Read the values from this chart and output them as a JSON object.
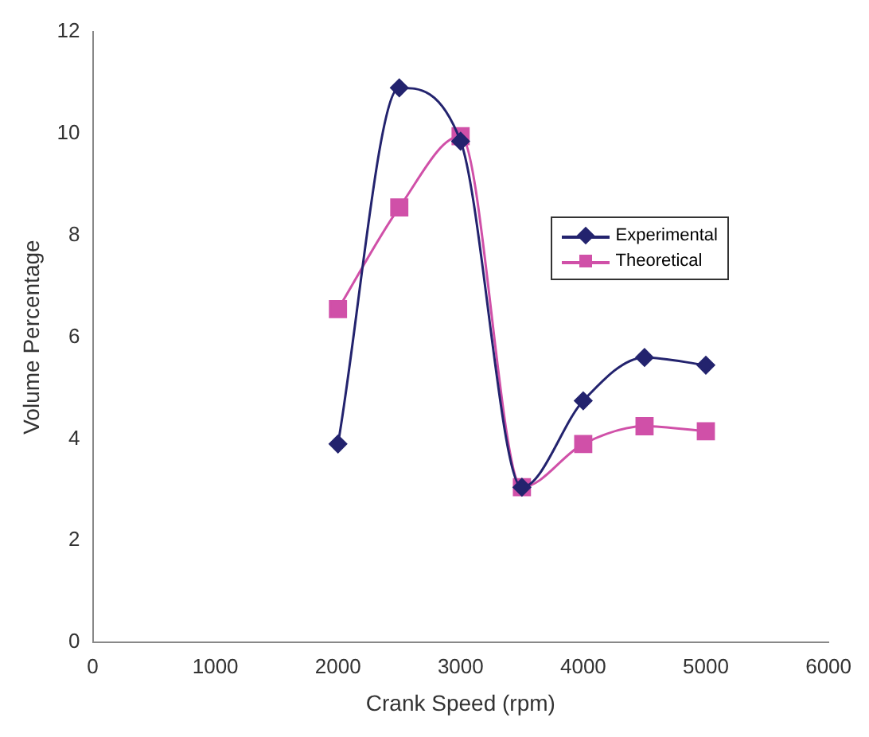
{
  "chart_data": {
    "type": "line",
    "xlabel": "Crank Speed (rpm)",
    "ylabel": "Volume Percentage",
    "x": [
      2000,
      2500,
      3000,
      3500,
      4000,
      4500,
      5000
    ],
    "series": [
      {
        "name": "Experimental",
        "color": "#23236e",
        "marker": "diamond",
        "values": [
          3.9,
          10.9,
          9.85,
          3.05,
          4.75,
          5.6,
          5.45
        ]
      },
      {
        "name": "Theoretical",
        "color": "#d050a8",
        "marker": "square",
        "values": [
          6.55,
          8.55,
          9.95,
          3.05,
          3.9,
          4.25,
          4.15
        ]
      }
    ],
    "xlim": [
      0,
      6000
    ],
    "xticks": [
      0,
      1000,
      2000,
      3000,
      4000,
      5000,
      6000
    ],
    "ylim": [
      0,
      12
    ],
    "yticks": [
      0,
      2,
      4,
      6,
      8,
      10,
      12
    ],
    "grid": false,
    "legend": "right"
  }
}
